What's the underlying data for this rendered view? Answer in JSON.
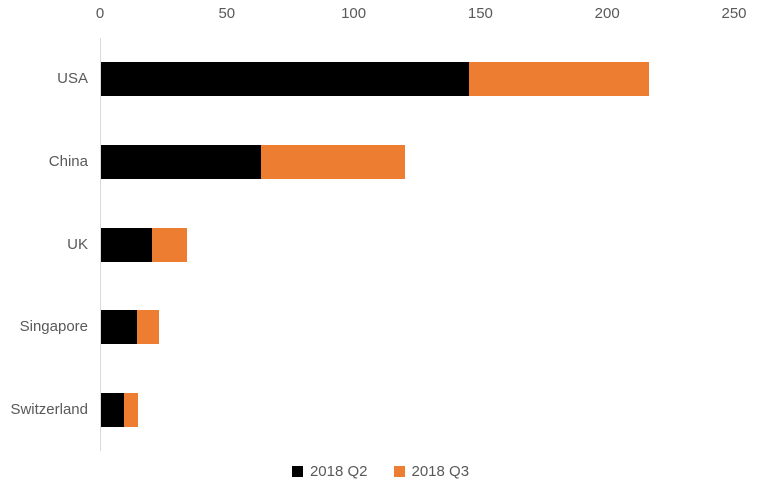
{
  "chart_data": {
    "type": "bar",
    "orientation": "horizontal",
    "stacked": true,
    "title": "",
    "categories": [
      "USA",
      "China",
      "UK",
      "Singapore",
      "Switzerland"
    ],
    "series": [
      {
        "name": "2018 Q2",
        "color": "#000000",
        "values": [
          145,
          63,
          20,
          14,
          9
        ]
      },
      {
        "name": "2018 Q3",
        "color": "#ED7D31",
        "values": [
          71,
          57,
          14,
          9,
          5.5
        ]
      }
    ],
    "xlim": [
      0,
      250
    ],
    "xticks": [
      0,
      50,
      100,
      150,
      200,
      250
    ],
    "grid": false,
    "legend_position": "bottom",
    "axis_text_color": "#595959",
    "axis_line_color": "#D9D9D9",
    "background_color": "#FFFFFF"
  }
}
